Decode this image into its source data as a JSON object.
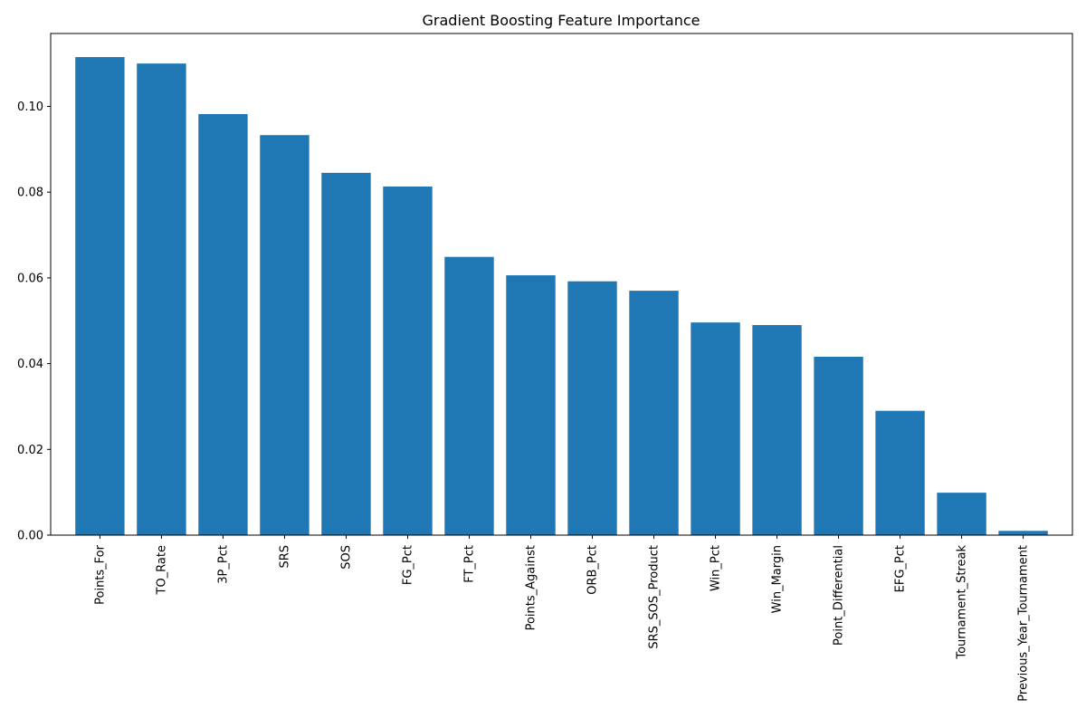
{
  "chart_data": {
    "type": "bar",
    "title": "Gradient Boosting Feature Importance",
    "xlabel": "",
    "ylabel": "",
    "categories": [
      "Points_For",
      "TO_Rate",
      "3P_Pct",
      "SRS",
      "SOS",
      "FG_Pct",
      "FT_Pct",
      "Points_Against",
      "ORB_Pct",
      "SRS_SOS_Product",
      "Win_Pct",
      "Win_Margin",
      "Point_Differential",
      "EFG_Pct",
      "Tournament_Streak",
      "Previous_Year_Tournament"
    ],
    "values": [
      0.1115,
      0.11,
      0.0982,
      0.0933,
      0.0845,
      0.0813,
      0.0649,
      0.0606,
      0.0592,
      0.057,
      0.0496,
      0.049,
      0.0416,
      0.029,
      0.0099,
      0.001
    ],
    "ylim": [
      0,
      0.117
    ],
    "yticks": [
      "0.00",
      "0.02",
      "0.04",
      "0.06",
      "0.08",
      "0.10"
    ],
    "bar_color": "#1f77b4",
    "grid": false,
    "legend": "none"
  }
}
